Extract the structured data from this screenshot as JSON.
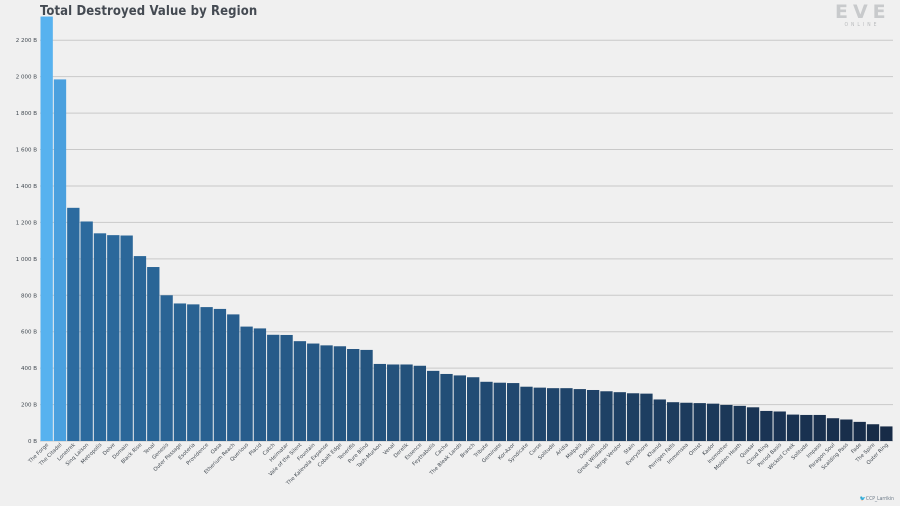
{
  "title": "Total Destroyed Value by Region",
  "logo": {
    "main": "EVE",
    "sub": "ONLINE"
  },
  "credit": "🐦CCP_Larrikin",
  "colors": {
    "highlight_top": "#57b2ef",
    "highlight_second": "#4aa0de",
    "bar_start": "#2c6b9f",
    "bar_end": "#172b47",
    "grid": "#c9c9c9",
    "axis_text": "#404850"
  },
  "chart_data": {
    "type": "bar",
    "title": "Total Destroyed Value by Region",
    "xlabel": "",
    "ylabel": "",
    "unit": "B",
    "ylim": [
      0,
      2300
    ],
    "yticks": [
      0,
      200,
      400,
      600,
      800,
      1000,
      1200,
      1400,
      1600,
      1800,
      2000,
      2200
    ],
    "ytick_labels": [
      "0 B",
      "200 B",
      "400 B",
      "600 B",
      "800 B",
      "1 000 B",
      "1 200 B",
      "1 400 B",
      "1 600 B",
      "1 800 B",
      "2 000 B",
      "2 200 B"
    ],
    "grid": true,
    "categories": [
      "The Forge",
      "The Citadel",
      "Lonetrek",
      "Sinq Laison",
      "Metropolis",
      "Delve",
      "Domain",
      "Black Rise",
      "Tenal",
      "Genesis",
      "Outer Passage",
      "Esoteria",
      "Providence",
      "Oasa",
      "Etherium Reach",
      "Querious",
      "Placid",
      "Catch",
      "Heimatar",
      "Vale of the Silent",
      "Fountain",
      "The Kalevala Expanse",
      "Cobalt Edge",
      "Tenerifis",
      "Pure Blind",
      "Tash-Murkon",
      "Venal",
      "Derelik",
      "Essence",
      "Feythabolis",
      "Cache",
      "The Bleak Lands",
      "Branch",
      "Tribute",
      "Geminate",
      "Kor-Azor",
      "Syndicate",
      "Curse",
      "Solitude",
      "Aridia",
      "Malpais",
      "Deklein",
      "Great Wildlands",
      "Verge Vendor",
      "Stain",
      "Everyshore",
      "Khanid",
      "Perrigen Falls",
      "Immensea",
      "Omist",
      "Kador",
      "Insmother",
      "Molden Heath",
      "Quasar",
      "Cloud Ring",
      "Period Basis",
      "Wicked Creek",
      "Solitude",
      "Impass",
      "Paragon Soul",
      "Scalding Pass",
      "Fade",
      "The Spire",
      "Outer Ring"
    ],
    "values": [
      2330,
      1985,
      1280,
      1205,
      1140,
      1130,
      1128,
      1015,
      955,
      800,
      755,
      750,
      735,
      725,
      695,
      628,
      618,
      583,
      582,
      548,
      535,
      525,
      520,
      505,
      500,
      423,
      420,
      420,
      413,
      385,
      368,
      360,
      350,
      325,
      320,
      318,
      298,
      293,
      290,
      290,
      285,
      280,
      273,
      268,
      262,
      260,
      228,
      213,
      210,
      208,
      205,
      198,
      193,
      185,
      165,
      162,
      145,
      143,
      143,
      125,
      118,
      105,
      92,
      80
    ]
  }
}
